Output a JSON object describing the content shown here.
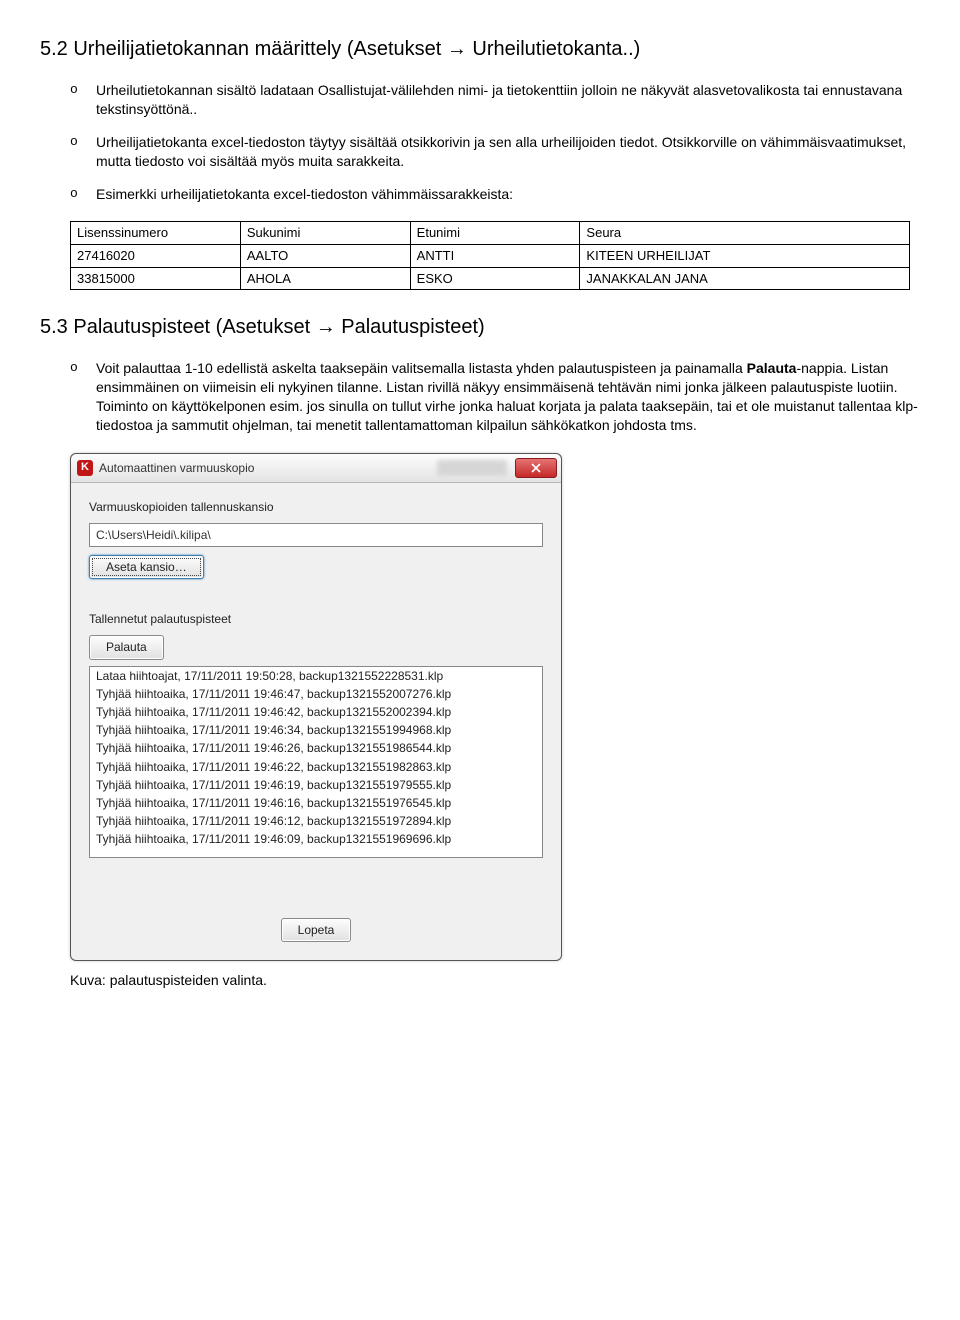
{
  "section52": {
    "heading": "5.2  Urheilijatietokannan määrittely (Asetukset → Urheilutietokanta..)",
    "items": [
      "Urheilutietokannan sisältö ladataan Osallistujat-välilehden nimi- ja tietokenttiin jolloin ne näkyvät alasvetovalikosta tai ennustavana tekstinsyöttönä..",
      "Urheilijatietokanta excel-tiedoston täytyy sisältää otsikkorivin ja sen alla urheilijoiden tiedot. Otsikkorville on vähimmäisvaatimukset, mutta tiedosto voi sisältää myös muita sarakkeita.",
      "Esimerkki urheilijatietokanta excel-tiedoston vähimmäissarakkeista:"
    ]
  },
  "excel_table": {
    "columns": [
      "Lisenssinumero",
      "Sukunimi",
      "Etunimi",
      "Seura"
    ],
    "rows": [
      [
        "27416020",
        "AALTO",
        "ANTTI",
        "KITEEN URHEILIJAT"
      ],
      [
        "33815000",
        "AHOLA",
        "ESKO",
        "JANAKKALAN JANA"
      ]
    ],
    "col_widths": [
      "170px",
      "170px",
      "170px",
      "330px"
    ]
  },
  "section53": {
    "heading": "5.3  Palautuspisteet  (Asetukset → Palautuspisteet)",
    "paragraph": "Voit palauttaa 1-10 edellistä askelta taaksepäin valitsemalla listasta yhden palautuspisteen ja painamalla Palauta-nappia. Listan ensimmäinen on viimeisin eli nykyinen tilanne. Listan rivillä näkyy ensimmäisenä tehtävän nimi jonka jälkeen palautuspiste luotiin. Toiminto on käyttökelponen esim. jos sinulla on tullut virhe jonka haluat korjata ja palata taaksepäin, tai et ole muistanut tallentaa klp-tiedostoa ja sammutit ohjelman, tai menetit tallentamattoman kilpailun sähkökatkon johdosta tms."
  },
  "dialog": {
    "title": "Automaattinen varmuuskopio",
    "icon_letter": "K",
    "folder_label": "Varmuuskopioiden tallennuskansio",
    "path": "C:\\Users\\Heidi\\.kilipa\\",
    "set_folder_btn": "Aseta kansio…",
    "saved_label": "Tallennetut palautuspisteet",
    "restore_btn": "Palauta",
    "items": [
      "Lataa hiihtoajat, 17/11/2011 19:50:28, backup1321552228531.klp",
      "Tyhjää hiihtoaika, 17/11/2011 19:46:47, backup1321552007276.klp",
      "Tyhjää hiihtoaika, 17/11/2011 19:46:42, backup1321552002394.klp",
      "Tyhjää hiihtoaika, 17/11/2011 19:46:34, backup1321551994968.klp",
      "Tyhjää hiihtoaika, 17/11/2011 19:46:26, backup1321551986544.klp",
      "Tyhjää hiihtoaika, 17/11/2011 19:46:22, backup1321551982863.klp",
      "Tyhjää hiihtoaika, 17/11/2011 19:46:19, backup1321551979555.klp",
      "Tyhjää hiihtoaika, 17/11/2011 19:46:16, backup1321551976545.klp",
      "Tyhjää hiihtoaika, 17/11/2011 19:46:12, backup1321551972894.klp",
      "Tyhjää hiihtoaika, 17/11/2011 19:46:09, backup1321551969696.klp"
    ],
    "close_btn": "Lopeta"
  },
  "caption": "Kuva: palautuspisteiden valinta."
}
